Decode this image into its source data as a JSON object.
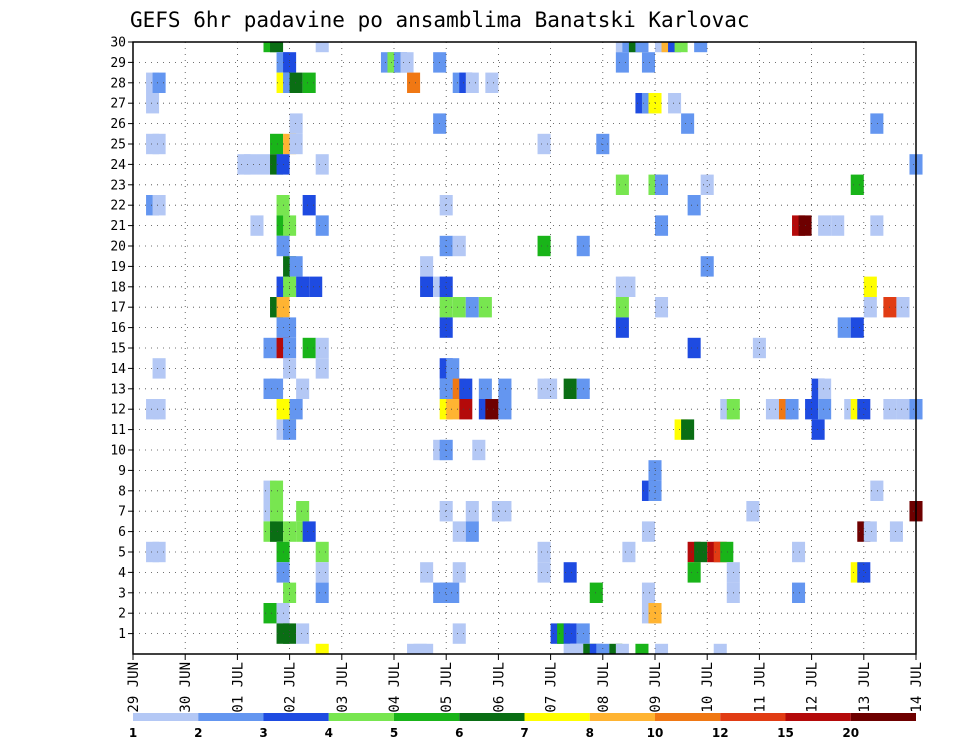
{
  "chart_data": {
    "type": "heatmap",
    "title": "GEFS 6hr padavine po ansamblima Banatski Karlovac",
    "xlabel": "",
    "ylabel": "",
    "x_ticks": [
      "29 JUN",
      "30 JUN",
      "01 JUL",
      "02 JUL",
      "03 JUL",
      "04 JUL",
      "05 JUL",
      "06 JUL",
      "07 JUL",
      "08 JUL",
      "09 JUL",
      "10 JUL",
      "11 JUL",
      "12 JUL",
      "13 JUL",
      "14 JUL"
    ],
    "x_range_steps": [
      0,
      60
    ],
    "y_range_members": [
      0,
      30
    ],
    "y_ticks": [
      1,
      2,
      3,
      4,
      5,
      6,
      7,
      8,
      9,
      10,
      11,
      12,
      13,
      14,
      15,
      16,
      17,
      18,
      19,
      20,
      21,
      22,
      23,
      24,
      25,
      26,
      27,
      28,
      29,
      30
    ],
    "grid": true,
    "colorbar": {
      "bounds": [
        "1",
        "2",
        "3",
        "4",
        "5",
        "6",
        "7",
        "8",
        "10",
        "12",
        "15",
        "20"
      ],
      "colors": [
        "#b4c8f5",
        "#6496f0",
        "#1e4be1",
        "#78e650",
        "#19b419",
        "#0a6e14",
        "#ffff00",
        "#ffb432",
        "#f07814",
        "#e13c14",
        "#b40a0a",
        "#6e0000"
      ]
    },
    "cells": [
      {
        "m": 30,
        "c": [
          [
            10.5,
            5
          ],
          [
            11,
            6
          ],
          [
            14.5,
            1
          ],
          [
            37.5,
            1
          ],
          [
            38,
            2
          ],
          [
            38.5,
            6
          ],
          [
            39,
            2
          ],
          [
            40.5,
            1
          ],
          [
            41,
            8
          ],
          [
            41.5,
            3
          ],
          [
            42,
            4
          ],
          [
            43.5,
            2
          ]
        ]
      },
      {
        "m": 29,
        "c": [
          [
            11.5,
            2
          ],
          [
            12,
            3
          ],
          [
            19.5,
            2
          ],
          [
            20,
            4
          ],
          [
            20.5,
            2
          ],
          [
            21,
            1
          ],
          [
            23.5,
            2
          ],
          [
            37.5,
            2
          ],
          [
            39.5,
            2
          ]
        ]
      },
      {
        "m": 28,
        "c": [
          [
            1.5,
            1
          ],
          [
            2,
            2
          ],
          [
            11.5,
            7
          ],
          [
            12,
            2
          ],
          [
            12.5,
            6
          ],
          [
            13.5,
            5
          ],
          [
            21.5,
            9
          ],
          [
            25,
            2
          ],
          [
            25.5,
            3
          ],
          [
            26,
            1
          ],
          [
            27.5,
            1
          ]
        ]
      },
      {
        "m": 27,
        "c": [
          [
            1.5,
            1
          ],
          [
            39,
            3
          ],
          [
            39.5,
            2
          ],
          [
            40,
            7
          ],
          [
            41.5,
            1
          ]
        ]
      },
      {
        "m": 26,
        "c": [
          [
            12.5,
            1
          ],
          [
            23.5,
            2
          ],
          [
            42.5,
            2
          ],
          [
            57,
            2
          ]
        ]
      },
      {
        "m": 25,
        "c": [
          [
            1.5,
            1
          ],
          [
            2,
            1
          ],
          [
            11,
            5
          ],
          [
            12,
            8
          ],
          [
            12.5,
            1
          ],
          [
            31.5,
            1
          ],
          [
            36,
            2
          ]
        ]
      },
      {
        "m": 24,
        "c": [
          [
            8.5,
            1
          ],
          [
            9,
            1
          ],
          [
            10,
            1
          ],
          [
            11,
            6
          ],
          [
            11.5,
            3
          ],
          [
            14.5,
            1
          ],
          [
            60,
            2
          ]
        ]
      },
      {
        "m": 23,
        "c": [
          [
            37.5,
            4
          ],
          [
            40,
            4
          ],
          [
            40.5,
            2
          ],
          [
            44,
            1
          ],
          [
            55.5,
            5
          ]
        ]
      },
      {
        "m": 22,
        "c": [
          [
            1.5,
            2
          ],
          [
            2,
            1
          ],
          [
            11.5,
            4
          ],
          [
            13.5,
            3
          ],
          [
            24,
            1
          ],
          [
            43,
            2
          ]
        ]
      },
      {
        "m": 21,
        "c": [
          [
            9.5,
            1
          ],
          [
            11.5,
            5
          ],
          [
            12,
            4
          ],
          [
            14.5,
            2
          ],
          [
            40.5,
            2
          ],
          [
            51,
            11
          ],
          [
            51.5,
            12
          ],
          [
            53,
            1
          ],
          [
            54,
            1
          ],
          [
            57,
            1
          ]
        ]
      },
      {
        "m": 20,
        "c": [
          [
            11.5,
            2
          ],
          [
            24,
            2
          ],
          [
            25,
            1
          ],
          [
            31.5,
            5
          ],
          [
            34.5,
            2
          ]
        ]
      },
      {
        "m": 19,
        "c": [
          [
            12,
            6
          ],
          [
            12.5,
            2
          ],
          [
            22.5,
            1
          ],
          [
            44,
            2
          ]
        ]
      },
      {
        "m": 18,
        "c": [
          [
            11.5,
            3
          ],
          [
            12,
            4
          ],
          [
            13,
            3
          ],
          [
            14,
            3
          ],
          [
            22.5,
            3
          ],
          [
            23.5,
            1
          ],
          [
            24,
            3
          ],
          [
            37.5,
            1
          ],
          [
            38,
            1
          ],
          [
            56.5,
            7
          ]
        ]
      },
      {
        "m": 17,
        "c": [
          [
            11,
            6
          ],
          [
            11.5,
            8
          ],
          [
            24,
            4
          ],
          [
            25,
            4
          ],
          [
            26,
            2
          ],
          [
            27,
            4
          ],
          [
            37.5,
            4
          ],
          [
            40.5,
            1
          ],
          [
            56.5,
            1
          ],
          [
            58,
            10
          ],
          [
            59,
            1
          ]
        ]
      },
      {
        "m": 16,
        "c": [
          [
            11.5,
            2
          ],
          [
            12,
            2
          ],
          [
            24,
            3
          ],
          [
            37.5,
            3
          ],
          [
            54.5,
            2
          ],
          [
            55.5,
            3
          ]
        ]
      },
      {
        "m": 15,
        "c": [
          [
            10.5,
            2
          ],
          [
            11.5,
            11
          ],
          [
            12,
            2
          ],
          [
            13.5,
            5
          ],
          [
            14.5,
            1
          ],
          [
            43,
            3
          ],
          [
            48,
            1
          ]
        ]
      },
      {
        "m": 14,
        "c": [
          [
            2,
            1
          ],
          [
            12,
            1
          ],
          [
            14.5,
            1
          ],
          [
            24,
            3
          ],
          [
            24.5,
            2
          ]
        ]
      },
      {
        "m": 13,
        "c": [
          [
            10.5,
            2
          ],
          [
            11,
            2
          ],
          [
            13,
            1
          ],
          [
            24,
            2
          ],
          [
            24.5,
            2
          ],
          [
            25,
            9
          ],
          [
            25.5,
            3
          ],
          [
            27,
            2
          ],
          [
            28.5,
            2
          ],
          [
            31.5,
            1
          ],
          [
            32,
            1
          ],
          [
            33.5,
            6
          ],
          [
            34.5,
            2
          ],
          [
            52.5,
            3
          ],
          [
            53,
            1
          ]
        ]
      },
      {
        "m": 12,
        "c": [
          [
            1.5,
            1
          ],
          [
            2,
            1
          ],
          [
            11.5,
            7
          ],
          [
            12,
            7
          ],
          [
            12.5,
            2
          ],
          [
            24,
            7
          ],
          [
            24.5,
            8
          ],
          [
            25.5,
            11
          ],
          [
            27,
            3
          ],
          [
            27.5,
            12
          ],
          [
            28.5,
            2
          ],
          [
            45.5,
            1
          ],
          [
            46,
            4
          ],
          [
            49,
            1
          ],
          [
            50,
            9
          ],
          [
            50.5,
            2
          ],
          [
            52,
            3
          ],
          [
            53,
            2
          ],
          [
            55,
            1
          ],
          [
            55.5,
            7
          ],
          [
            56,
            3
          ],
          [
            58,
            1
          ],
          [
            59,
            1
          ],
          [
            59.5,
            1
          ],
          [
            60,
            2
          ]
        ]
      },
      {
        "m": 11,
        "c": [
          [
            11.5,
            1
          ],
          [
            12,
            2
          ],
          [
            42,
            7
          ],
          [
            42.5,
            6
          ],
          [
            52.5,
            3
          ]
        ]
      },
      {
        "m": 10,
        "c": [
          [
            23.5,
            1
          ],
          [
            24,
            2
          ],
          [
            26.5,
            1
          ]
        ]
      },
      {
        "m": 9,
        "c": [
          [
            40,
            2
          ]
        ]
      },
      {
        "m": 8,
        "c": [
          [
            10.5,
            1
          ],
          [
            11,
            4
          ],
          [
            39.5,
            3
          ],
          [
            40,
            2
          ],
          [
            57,
            1
          ]
        ]
      },
      {
        "m": 7,
        "c": [
          [
            10.5,
            1
          ],
          [
            11,
            4
          ],
          [
            13,
            4
          ],
          [
            24,
            1
          ],
          [
            26,
            1
          ],
          [
            28,
            1
          ],
          [
            28.5,
            1
          ],
          [
            47.5,
            1
          ],
          [
            60,
            12
          ]
        ]
      },
      {
        "m": 6,
        "c": [
          [
            10.5,
            4
          ],
          [
            11,
            6
          ],
          [
            12,
            4
          ],
          [
            13,
            4
          ],
          [
            13.5,
            3
          ],
          [
            25,
            1
          ],
          [
            26,
            2
          ],
          [
            39.5,
            1
          ],
          [
            56,
            12
          ],
          [
            56.5,
            1
          ],
          [
            58.5,
            1
          ]
        ]
      },
      {
        "m": 5,
        "c": [
          [
            1.5,
            1
          ],
          [
            2,
            1
          ],
          [
            11.5,
            5
          ],
          [
            14.5,
            4
          ],
          [
            31.5,
            1
          ],
          [
            38,
            1
          ],
          [
            43,
            11
          ],
          [
            43.5,
            6
          ],
          [
            44.5,
            11
          ],
          [
            45,
            10
          ],
          [
            45.5,
            5
          ],
          [
            51,
            1
          ]
        ]
      },
      {
        "m": 4,
        "c": [
          [
            11.5,
            2
          ],
          [
            14.5,
            1
          ],
          [
            22.5,
            1
          ],
          [
            25,
            1
          ],
          [
            31.5,
            1
          ],
          [
            33.5,
            3
          ],
          [
            43,
            5
          ],
          [
            46,
            1
          ],
          [
            55.5,
            7
          ],
          [
            56,
            3
          ]
        ]
      },
      {
        "m": 3,
        "c": [
          [
            12,
            4
          ],
          [
            14.5,
            2
          ],
          [
            23.5,
            2
          ],
          [
            24,
            2
          ],
          [
            24.5,
            2
          ],
          [
            35.5,
            5
          ],
          [
            39.5,
            1
          ],
          [
            46,
            1
          ],
          [
            51,
            2
          ]
        ]
      },
      {
        "m": 2,
        "c": [
          [
            10.5,
            5
          ],
          [
            11.5,
            1
          ],
          [
            39.5,
            1
          ],
          [
            40,
            8
          ]
        ]
      },
      {
        "m": 1,
        "c": [
          [
            11.5,
            6
          ],
          [
            12,
            6
          ],
          [
            13,
            1
          ],
          [
            25,
            1
          ],
          [
            32.5,
            3
          ],
          [
            33,
            5
          ],
          [
            33.5,
            3
          ],
          [
            34.5,
            2
          ]
        ]
      },
      {
        "m": 0,
        "c": [
          [
            14.5,
            7
          ],
          [
            21.5,
            1
          ],
          [
            22,
            1
          ],
          [
            22.5,
            1
          ],
          [
            33.5,
            1
          ],
          [
            34,
            1
          ],
          [
            35,
            6
          ],
          [
            35.5,
            3
          ],
          [
            36,
            2
          ],
          [
            37,
            6
          ],
          [
            37.5,
            1
          ],
          [
            39,
            5
          ],
          [
            40.5,
            1
          ],
          [
            45,
            1
          ]
        ]
      }
    ]
  }
}
